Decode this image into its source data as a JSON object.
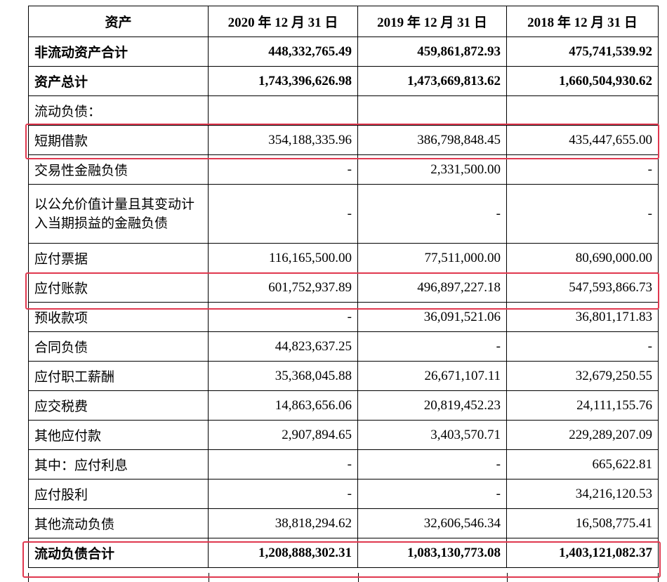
{
  "header": {
    "col0": "资产",
    "col1": "2020 年 12 月 31 日",
    "col2": "2019 年 12 月 31 日",
    "col3": "2018 年 12 月 31 日"
  },
  "rows": [
    {
      "label": "非流动资产合计",
      "v2020": "448,332,765.49",
      "v2019": "459,861,872.93",
      "v2018": "475,741,539.92"
    },
    {
      "label": "资产总计",
      "v2020": "1,743,396,626.98",
      "v2019": "1,473,669,813.62",
      "v2018": "1,660,504,930.62"
    },
    {
      "label": "流动负债：",
      "v2020": "",
      "v2019": "",
      "v2018": ""
    },
    {
      "label": "短期借款",
      "v2020": "354,188,335.96",
      "v2019": "386,798,848.45",
      "v2018": "435,447,655.00"
    },
    {
      "label": "交易性金融负债",
      "v2020": "-",
      "v2019": "2,331,500.00",
      "v2018": "-"
    },
    {
      "label": "以公允价值计量且其变动计入当期损益的金融负债",
      "v2020": "-",
      "v2019": "-",
      "v2018": "-"
    },
    {
      "label": "应付票据",
      "v2020": "116,165,500.00",
      "v2019": "77,511,000.00",
      "v2018": "80,690,000.00"
    },
    {
      "label": "应付账款",
      "v2020": "601,752,937.89",
      "v2019": "496,897,227.18",
      "v2018": "547,593,866.73"
    },
    {
      "label": "预收款项",
      "v2020": "-",
      "v2019": "36,091,521.06",
      "v2018": "36,801,171.83"
    },
    {
      "label": "合同负债",
      "v2020": "44,823,637.25",
      "v2019": "-",
      "v2018": "-"
    },
    {
      "label": "应付职工薪酬",
      "v2020": "35,368,045.88",
      "v2019": "26,671,107.11",
      "v2018": "32,679,250.55"
    },
    {
      "label": "应交税费",
      "v2020": "14,863,656.06",
      "v2019": "20,819,452.23",
      "v2018": "24,111,155.76"
    },
    {
      "label": "其他应付款",
      "v2020": "2,907,894.65",
      "v2019": "3,403,570.71",
      "v2018": "229,289,207.09"
    },
    {
      "label": "其中：应付利息",
      "v2020": "-",
      "v2019": "-",
      "v2018": "665,622.81"
    },
    {
      "label": "应付股利",
      "v2020": "-",
      "v2019": "-",
      "v2018": "34,216,120.53"
    },
    {
      "label": "其他流动负债",
      "v2020": "38,818,294.62",
      "v2019": "32,606,546.34",
      "v2018": "16,508,775.41"
    },
    {
      "label": "流动负债合计",
      "v2020": "1,208,888,302.31",
      "v2019": "1,083,130,773.08",
      "v2018": "1,403,121,082.37"
    }
  ],
  "highlight_color": "#e0384f"
}
